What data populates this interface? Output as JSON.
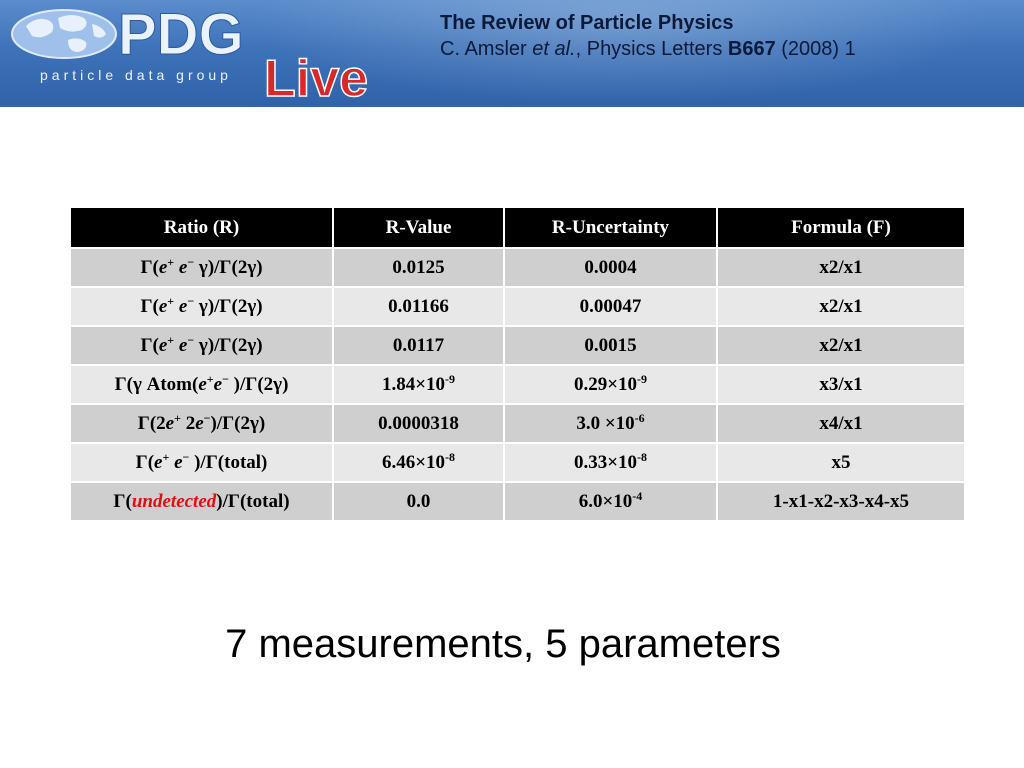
{
  "header": {
    "title": "The Review of Particle Physics",
    "citation_pre": "C. Amsler ",
    "citation_etal": "et al.",
    "citation_mid": ", Physics Letters ",
    "citation_vol": "B667",
    "citation_post": " (2008) 1"
  },
  "logo": {
    "main": "PDG",
    "tagline": "particle data group",
    "live": "Live"
  },
  "table": {
    "headers": [
      "Ratio (R)",
      "R-Value",
      "R-Uncertainty",
      "Formula  (F)"
    ],
    "rows": [
      {
        "value": "0.0125",
        "uncertainty": "0.0004",
        "formula": "x2/x1"
      },
      {
        "value": "0.01166",
        "uncertainty": "0.00047",
        "formula": "x2/x1"
      },
      {
        "value": "0.0117",
        "uncertainty": "0.0015",
        "formula": "x2/x1"
      },
      {
        "value_base": "1.84×10",
        "value_exp": "-9",
        "unc_base": "0.29×10",
        "unc_exp": "-9",
        "formula": "x3/x1"
      },
      {
        "value": "0.0000318",
        "unc_base": "3.0 ×10",
        "unc_exp": "-6",
        "formula": "x4/x1"
      },
      {
        "value_base": "6.46×10",
        "value_exp": "-8",
        "unc_base": "0.33×10",
        "unc_exp": "-8",
        "formula": "x5"
      },
      {
        "value": "0.0",
        "unc_base": "6.0×10",
        "unc_exp": "-4",
        "formula": "1-x1-x2-x3-x4-x5"
      }
    ],
    "ratio_text": {
      "gamma": "Γ",
      "open": "(",
      "e": "e",
      "plus": "+",
      "minus": "−",
      "gamma_small": "γ",
      "close_2g": ")/Γ(2γ)",
      "atom": "(γ Atom(",
      "close_atom": " )/Γ(2γ)",
      "two": "2",
      "close_total": ")/Γ(total)",
      "close_total_sp": " )/Γ(total)",
      "undetected": "undetected"
    }
  },
  "footer": "7 measurements,  5 parameters",
  "colors": {
    "banner": "#3f73b9",
    "header_row": "#000000",
    "row_dark": "#cfcfcf",
    "row_light": "#e8e8e8",
    "accent_red": "#e01010"
  }
}
